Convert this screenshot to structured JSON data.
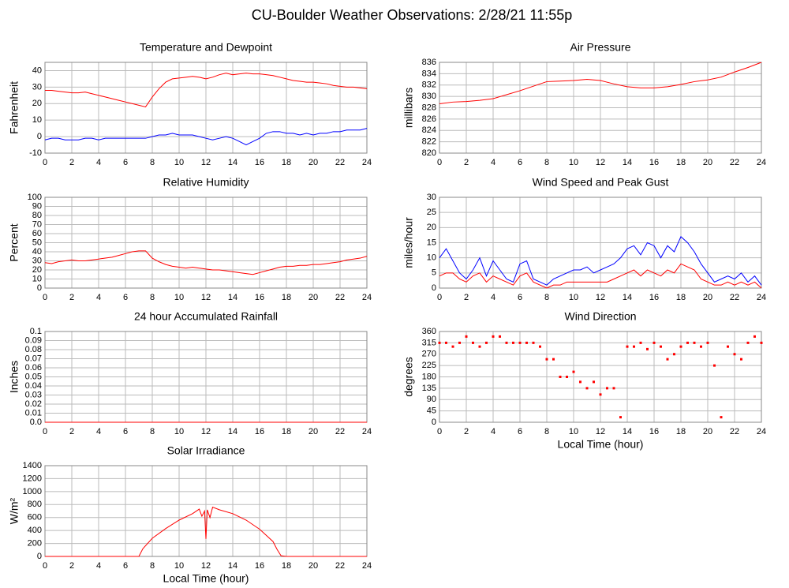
{
  "page_title": "CU-Boulder Weather Observations: 2/28/21 11:55p",
  "chart_data": [
    {
      "type": "line",
      "title": "Temperature and Dewpoint",
      "ylabel": "Fahrenheit",
      "x": [
        0,
        0.5,
        1,
        1.5,
        2,
        2.5,
        3,
        3.5,
        4,
        4.5,
        5,
        5.5,
        6,
        6.5,
        7,
        7.5,
        8,
        8.5,
        9,
        9.5,
        10,
        10.5,
        11,
        11.5,
        12,
        12.5,
        13,
        13.5,
        14,
        14.5,
        15,
        15.5,
        16,
        16.5,
        17,
        17.5,
        18,
        18.5,
        19,
        19.5,
        20,
        20.5,
        21,
        21.5,
        22,
        22.5,
        23,
        23.5,
        24
      ],
      "series": [
        {
          "color": "#ff0000",
          "values": [
            28,
            28,
            27.5,
            27,
            26.5,
            26.5,
            27,
            26,
            25,
            24,
            23,
            22,
            21,
            20,
            19,
            18,
            24,
            29,
            33,
            35,
            35.5,
            36,
            36.5,
            36,
            35,
            36,
            37.5,
            38.5,
            37.5,
            38,
            38.5,
            38,
            38,
            37.5,
            37,
            36,
            35,
            34,
            33.5,
            33,
            33,
            32.5,
            32,
            31,
            30.5,
            30,
            30,
            29.5,
            29
          ]
        },
        {
          "color": "#0000ff",
          "values": [
            -2,
            -1,
            -1,
            -2,
            -2,
            -2,
            -1,
            -1,
            -2,
            -1,
            -1,
            -1,
            -1,
            -1,
            -1,
            -1,
            0,
            1,
            1,
            2,
            1,
            1,
            1,
            0,
            -1,
            -2,
            -1,
            0,
            -1,
            -3,
            -5,
            -3,
            -1,
            2,
            3,
            3,
            2,
            2,
            1,
            2,
            1,
            2,
            2,
            3,
            3,
            4,
            4,
            4,
            5
          ]
        }
      ],
      "xlim": [
        0,
        24
      ],
      "xticks": [
        0,
        2,
        4,
        6,
        8,
        10,
        12,
        14,
        16,
        18,
        20,
        22,
        24
      ],
      "ylim": [
        -10,
        45
      ],
      "yticks": [
        -10,
        0,
        10,
        20,
        30,
        40
      ],
      "grid": true
    },
    {
      "type": "line",
      "title": "Air Pressure",
      "ylabel": "millibars",
      "x": [
        0,
        1,
        2,
        3,
        4,
        5,
        6,
        7,
        8,
        9,
        10,
        11,
        12,
        13,
        14,
        15,
        16,
        17,
        18,
        19,
        20,
        21,
        22,
        23,
        24
      ],
      "series": [
        {
          "color": "#ff0000",
          "values": [
            828.7,
            829,
            829.1,
            829.3,
            829.6,
            830.3,
            831,
            831.8,
            832.6,
            832.7,
            832.8,
            833,
            832.8,
            832.2,
            831.7,
            831.5,
            831.5,
            831.7,
            832.1,
            832.6,
            832.9,
            833.4,
            834.3,
            835.1,
            836
          ]
        }
      ],
      "xlim": [
        0,
        24
      ],
      "xticks": [
        0,
        2,
        4,
        6,
        8,
        10,
        12,
        14,
        16,
        18,
        20,
        22,
        24
      ],
      "ylim": [
        820,
        836
      ],
      "yticks": [
        820,
        822,
        824,
        826,
        828,
        830,
        832,
        834,
        836
      ],
      "grid": true
    },
    {
      "type": "line",
      "title": "Relative Humidity",
      "ylabel": "Percent",
      "x": [
        0,
        0.5,
        1,
        1.5,
        2,
        2.5,
        3,
        3.5,
        4,
        4.5,
        5,
        5.5,
        6,
        6.5,
        7,
        7.5,
        8,
        8.5,
        9,
        9.5,
        10,
        10.5,
        11,
        11.5,
        12,
        12.5,
        13,
        13.5,
        14,
        14.5,
        15,
        15.5,
        16,
        16.5,
        17,
        17.5,
        18,
        18.5,
        19,
        19.5,
        20,
        20.5,
        21,
        21.5,
        22,
        22.5,
        23,
        23.5,
        24
      ],
      "series": [
        {
          "color": "#ff0000",
          "values": [
            28,
            27,
            29,
            30,
            31,
            30,
            30,
            31,
            32,
            33,
            34,
            36,
            38,
            40,
            41,
            41,
            33,
            29,
            26,
            24,
            23,
            22,
            23,
            22,
            21,
            20,
            20,
            19,
            18,
            17,
            16,
            15,
            17,
            19,
            21,
            23,
            24,
            24,
            25,
            25,
            26,
            26,
            27,
            28,
            29,
            31,
            32,
            33,
            35
          ]
        }
      ],
      "xlim": [
        0,
        24
      ],
      "xticks": [
        0,
        2,
        4,
        6,
        8,
        10,
        12,
        14,
        16,
        18,
        20,
        22,
        24
      ],
      "ylim": [
        0,
        100
      ],
      "yticks": [
        0,
        10,
        20,
        30,
        40,
        50,
        60,
        70,
        80,
        90,
        100
      ],
      "grid": true
    },
    {
      "type": "line",
      "title": "Wind Speed and Peak Gust",
      "ylabel": "miles/hour",
      "x": [
        0,
        0.5,
        1,
        1.5,
        2,
        2.5,
        3,
        3.5,
        4,
        4.5,
        5,
        5.5,
        6,
        6.5,
        7,
        7.5,
        8,
        8.5,
        9,
        9.5,
        10,
        10.5,
        11,
        11.5,
        12,
        12.5,
        13,
        13.5,
        14,
        14.5,
        15,
        15.5,
        16,
        16.5,
        17,
        17.5,
        18,
        18.5,
        19,
        19.5,
        20,
        20.5,
        21,
        21.5,
        22,
        22.5,
        23,
        23.5,
        24
      ],
      "series": [
        {
          "color": "#0000ff",
          "values": [
            10,
            13,
            9,
            5,
            3,
            6,
            10,
            4,
            9,
            6,
            3,
            2,
            8,
            9,
            3,
            2,
            1,
            3,
            4,
            5,
            6,
            6,
            7,
            5,
            6,
            7,
            8,
            10,
            13,
            14,
            11,
            15,
            14,
            10,
            14,
            12,
            17,
            15,
            12,
            8,
            5,
            2,
            3,
            4,
            3,
            5,
            2,
            4,
            1
          ]
        },
        {
          "color": "#ff0000",
          "values": [
            4,
            5,
            5,
            3,
            2,
            4,
            5,
            2,
            4,
            3,
            2,
            1,
            4,
            5,
            2,
            1,
            0,
            1,
            1,
            2,
            2,
            2,
            2,
            2,
            2,
            2,
            3,
            4,
            5,
            6,
            4,
            6,
            5,
            4,
            6,
            5,
            8,
            7,
            6,
            3,
            2,
            1,
            1,
            2,
            1,
            2,
            1,
            2,
            0
          ]
        }
      ],
      "xlim": [
        0,
        24
      ],
      "xticks": [
        0,
        2,
        4,
        6,
        8,
        10,
        12,
        14,
        16,
        18,
        20,
        22,
        24
      ],
      "ylim": [
        0,
        30
      ],
      "yticks": [
        0,
        5,
        10,
        15,
        20,
        25,
        30
      ],
      "grid": true
    },
    {
      "type": "line",
      "title": "24 hour Accumulated Rainfall",
      "ylabel": "Inches",
      "x": [
        0,
        24
      ],
      "series": [
        {
          "color": "#ff0000",
          "values": [
            0,
            0
          ]
        }
      ],
      "xlim": [
        0,
        24
      ],
      "xticks": [
        0,
        2,
        4,
        6,
        8,
        10,
        12,
        14,
        16,
        18,
        20,
        22,
        24
      ],
      "ylim": [
        0,
        0.1
      ],
      "yticks": [
        {
          "value": 0,
          "label": "0.0"
        },
        0.01,
        0.02,
        0.03,
        0.04,
        0.05,
        0.06,
        0.07,
        0.08,
        0.09,
        0.1
      ],
      "grid": true
    },
    {
      "type": "scatter",
      "title": "Wind Direction",
      "ylabel": "degrees",
      "xlabel": "Local Time (hour)",
      "x": [
        0,
        0.5,
        1,
        1.5,
        2,
        2.5,
        3,
        3.5,
        4,
        4.5,
        5,
        5.5,
        6,
        6.5,
        7,
        7.5,
        8,
        8.5,
        9,
        9.5,
        10,
        10.5,
        11,
        11.5,
        12,
        12.5,
        13,
        13.5,
        14,
        14.5,
        15,
        15.5,
        16,
        16.5,
        17,
        17.5,
        18,
        18.5,
        19,
        19.5,
        20,
        20.5,
        21,
        21.5,
        22,
        22.5,
        23,
        23.5,
        24
      ],
      "series": [
        {
          "color": "#ff0000",
          "values": [
            315,
            315,
            300,
            315,
            340,
            315,
            300,
            315,
            340,
            340,
            315,
            315,
            315,
            315,
            315,
            300,
            250,
            250,
            180,
            180,
            200,
            160,
            135,
            160,
            110,
            135,
            135,
            20,
            300,
            300,
            315,
            290,
            315,
            300,
            250,
            270,
            300,
            315,
            315,
            300,
            315,
            225,
            20,
            300,
            270,
            250,
            315,
            340,
            315
          ]
        }
      ],
      "xlim": [
        0,
        24
      ],
      "xticks": [
        0,
        2,
        4,
        6,
        8,
        10,
        12,
        14,
        16,
        18,
        20,
        22,
        24
      ],
      "ylim": [
        0,
        360
      ],
      "yticks": [
        0,
        45,
        90,
        135,
        180,
        225,
        270,
        315,
        360
      ],
      "grid": true
    },
    {
      "type": "line",
      "title": "Solar Irradiance",
      "ylabel": "W/m²",
      "xlabel": "Local Time (hour)",
      "x": [
        0,
        6,
        7,
        7.3,
        8,
        9,
        10,
        11,
        11.5,
        11.7,
        11.9,
        12,
        12.1,
        12.3,
        12.5,
        13,
        14,
        15,
        16,
        17,
        17.3,
        17.6,
        18,
        24
      ],
      "series": [
        {
          "color": "#ff0000",
          "values": [
            0,
            0,
            0,
            120,
            280,
            430,
            560,
            660,
            730,
            620,
            700,
            270,
            720,
            600,
            760,
            720,
            660,
            560,
            420,
            230,
            110,
            10,
            0,
            0
          ]
        }
      ],
      "xlim": [
        0,
        24
      ],
      "xticks": [
        0,
        2,
        4,
        6,
        8,
        10,
        12,
        14,
        16,
        18,
        20,
        22,
        24
      ],
      "ylim": [
        0,
        1400
      ],
      "yticks": [
        0,
        200,
        400,
        600,
        800,
        1000,
        1200,
        1400
      ],
      "grid": true
    }
  ]
}
